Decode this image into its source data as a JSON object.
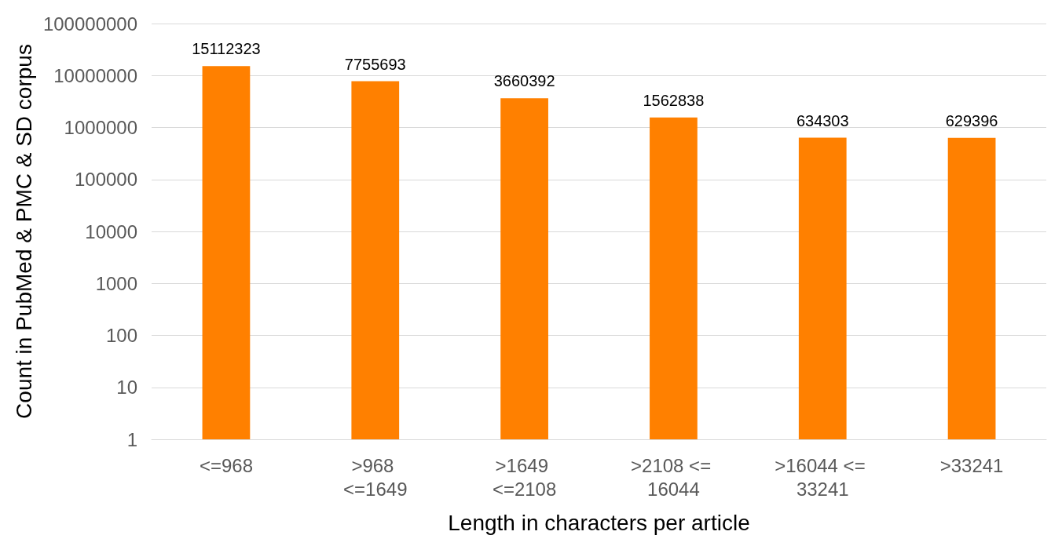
{
  "chart_data": {
    "type": "bar",
    "xlabel": "Length in characters per article",
    "ylabel": "Count in PubMed & PMC & SD corpus",
    "categories": [
      "<=968",
      ">968 <=1649",
      ">1649 <=2108",
      ">2108 <= 16044",
      ">16044 <= 33241",
      ">33241"
    ],
    "values": [
      15112323,
      7755693,
      3660392,
      1562838,
      634303,
      629396
    ],
    "color": "#ff8000",
    "log": "y",
    "ylim": [
      1,
      100000000
    ],
    "yticks": [
      1,
      10,
      100,
      1000,
      10000,
      100000,
      1000000,
      10000000,
      100000000
    ],
    "grid": "y",
    "data_labels": true
  }
}
